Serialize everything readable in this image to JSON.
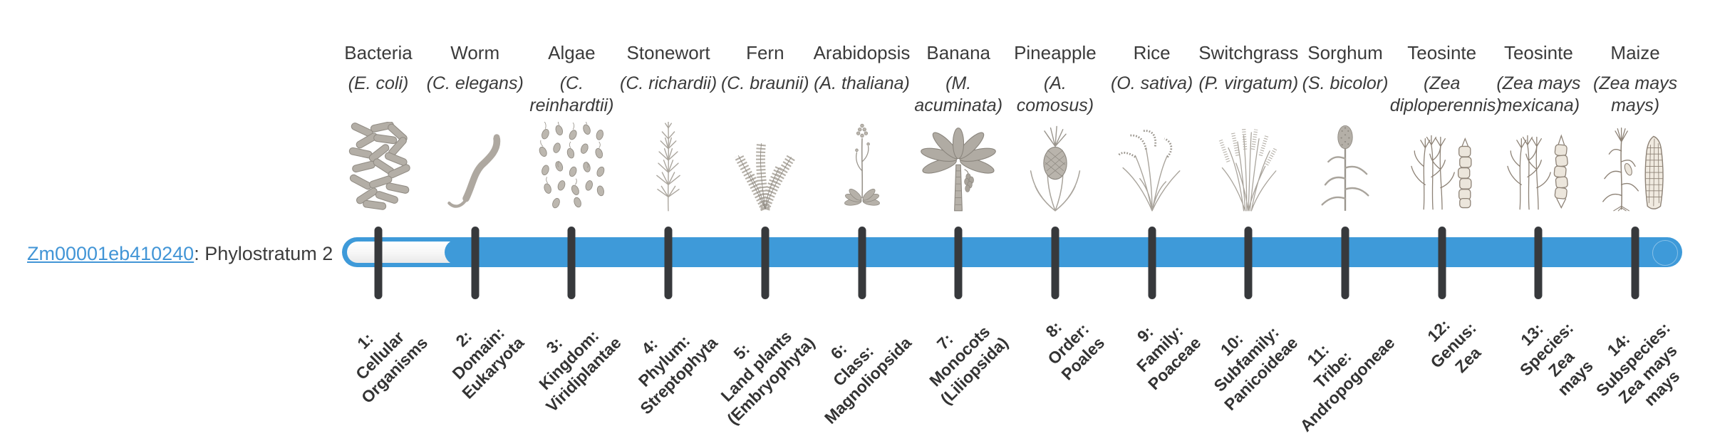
{
  "gene": {
    "id": "Zm00001eb410240",
    "suffix": ": Phylostratum 2",
    "phylostratum": 2
  },
  "colors": {
    "bar": "#3e9ad9",
    "bar_unfilled": "#ffffff",
    "tick": "#37393c",
    "link": "#4295d6",
    "text": "#3b3b3b"
  },
  "phylostrata": [
    {
      "index": 1,
      "organism": "Bacteria",
      "scientific": "(E. coli)",
      "label": "1:\nCellular\nOrganisms",
      "icon": "bacteria"
    },
    {
      "index": 2,
      "organism": "Worm",
      "scientific": "(C. elegans)",
      "label": "2:\nDomain:\nEukaryota",
      "icon": "worm"
    },
    {
      "index": 3,
      "organism": "Algae",
      "scientific": "(C. reinhardtii)",
      "label": "3:\nKingdom:\nViridiplantae",
      "icon": "algae"
    },
    {
      "index": 4,
      "organism": "Stonewort",
      "scientific": "(C. richardii)",
      "label": "4:\nPhylum:\nStreptophyta",
      "icon": "stonewort"
    },
    {
      "index": 5,
      "organism": "Fern",
      "scientific": "(C. braunii)",
      "label": "5:\nLand plants\n(Embryophyta)",
      "icon": "fern"
    },
    {
      "index": 6,
      "organism": "Arabidopsis",
      "scientific": "(A. thaliana)",
      "label": "6:\nClass:\nMagnoliopsida",
      "icon": "arabidopsis"
    },
    {
      "index": 7,
      "organism": "Banana",
      "scientific": "(M. acuminata)",
      "label": "7:\nMonocots\n(Liliopsida)",
      "icon": "banana"
    },
    {
      "index": 8,
      "organism": "Pineapple",
      "scientific": "(A. comosus)",
      "label": "8:\nOrder:\nPoales",
      "icon": "pineapple"
    },
    {
      "index": 9,
      "organism": "Rice",
      "scientific": "(O. sativa)",
      "label": "9:\nFamily:\nPoaceae",
      "icon": "rice"
    },
    {
      "index": 10,
      "organism": "Switchgrass",
      "scientific": "(P. virgatum)",
      "label": "10:\nSubfamily:\nPanicoideae",
      "icon": "switchgrass"
    },
    {
      "index": 11,
      "organism": "Sorghum",
      "scientific": "(S. bicolor)",
      "label": "11:\nTribe:\nAndropogoneae",
      "icon": "sorghum"
    },
    {
      "index": 12,
      "organism": "Teosinte",
      "scientific": "(Zea diploperennis)",
      "label": "12:\nGenus:\nZea",
      "icon": "teosinte-diploperennis"
    },
    {
      "index": 13,
      "organism": "Teosinte",
      "scientific": "(Zea mays mexicana)",
      "label": "13:\nSpecies:\nZea\nmays",
      "icon": "teosinte-mexicana"
    },
    {
      "index": 14,
      "organism": "Maize",
      "scientific": "(Zea mays mays)",
      "label": "14:\nSubspecies:\nZea mays\nmays",
      "icon": "maize"
    }
  ]
}
